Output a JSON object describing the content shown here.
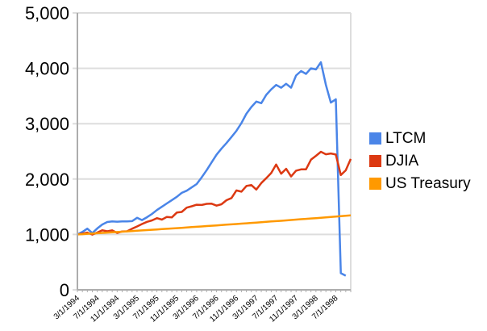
{
  "chart_data": {
    "type": "line",
    "title": "",
    "xlabel": "",
    "ylabel": "",
    "ylim": [
      0,
      5000
    ],
    "y_ticks": [
      0,
      1000,
      2000,
      3000,
      4000,
      5000
    ],
    "y_tick_labels": [
      "0",
      "1,000",
      "2,000",
      "3,000",
      "4,000",
      "5,000"
    ],
    "x_label_every": 4,
    "grid": true,
    "legend_position": "right",
    "colors": {
      "grid": "#DDDDDD",
      "axis": "#ADADAD",
      "text": "#000000",
      "background": "#FFFFFF"
    },
    "x": [
      "3/1/1994",
      "4/1/1994",
      "5/1/1994",
      "6/1/1994",
      "7/1/1994",
      "8/1/1994",
      "9/1/1994",
      "10/1/1994",
      "11/1/1994",
      "12/1/1994",
      "1/1/1995",
      "2/1/1995",
      "3/1/1995",
      "4/1/1995",
      "5/1/1995",
      "6/1/1995",
      "7/1/1995",
      "8/1/1995",
      "9/1/1995",
      "10/1/1995",
      "11/1/1995",
      "12/1/1995",
      "1/1/1996",
      "2/1/1996",
      "3/1/1996",
      "4/1/1996",
      "5/1/1996",
      "6/1/1996",
      "7/1/1996",
      "8/1/1996",
      "9/1/1996",
      "10/1/1996",
      "11/1/1996",
      "12/1/1996",
      "1/1/1997",
      "2/1/1997",
      "3/1/1997",
      "4/1/1997",
      "5/1/1997",
      "6/1/1997",
      "7/1/1997",
      "8/1/1997",
      "9/1/1997",
      "10/1/1997",
      "11/1/1997",
      "12/1/1997",
      "1/1/1998",
      "2/1/1998",
      "3/1/1998",
      "4/1/1998",
      "5/1/1998",
      "6/1/1998",
      "7/1/1998",
      "8/1/1998",
      "9/1/1998",
      "10/1/1998"
    ],
    "series": [
      {
        "name": "LTCM",
        "color": "#4A85E8",
        "values": [
          1000,
          1045,
          1105,
          1025,
          1110,
          1180,
          1225,
          1235,
          1230,
          1235,
          1235,
          1240,
          1300,
          1260,
          1310,
          1370,
          1440,
          1500,
          1560,
          1620,
          1680,
          1750,
          1790,
          1850,
          1910,
          2030,
          2160,
          2300,
          2440,
          2550,
          2650,
          2760,
          2870,
          3010,
          3180,
          3300,
          3400,
          3370,
          3520,
          3620,
          3700,
          3650,
          3720,
          3650,
          3870,
          3950,
          3900,
          4000,
          3980,
          4110,
          3700,
          3380,
          3440,
          300,
          255,
          null
        ]
      },
      {
        "name": "DJIA",
        "color": "#DC3912",
        "values": [
          1000,
          1013,
          1034,
          997,
          1035,
          1076,
          1057,
          1075,
          1028,
          1054,
          1057,
          1103,
          1144,
          1188,
          1228,
          1253,
          1295,
          1268,
          1317,
          1308,
          1395,
          1407,
          1484,
          1509,
          1537,
          1532,
          1552,
          1555,
          1521,
          1545,
          1618,
          1658,
          1794,
          1773,
          1874,
          1892,
          1811,
          1928,
          2016,
          2110,
          2262,
          2096,
          2185,
          2047,
          2152,
          2175,
          2175,
          2350,
          2420,
          2492,
          2448,
          2462,
          2443,
          2073,
          2157,
          2363
        ]
      },
      {
        "name": "US Treasury",
        "color": "#FF9900",
        "values": [
          1000,
          1005,
          1011,
          1016,
          1022,
          1027,
          1033,
          1038,
          1044,
          1050,
          1055,
          1061,
          1067,
          1073,
          1078,
          1084,
          1090,
          1096,
          1102,
          1108,
          1114,
          1120,
          1126,
          1132,
          1138,
          1144,
          1151,
          1157,
          1163,
          1169,
          1176,
          1182,
          1188,
          1195,
          1201,
          1208,
          1214,
          1221,
          1227,
          1234,
          1241,
          1247,
          1254,
          1261,
          1268,
          1275,
          1281,
          1288,
          1295,
          1302,
          1309,
          1317,
          1324,
          1331,
          1338,
          1345
        ]
      }
    ]
  }
}
